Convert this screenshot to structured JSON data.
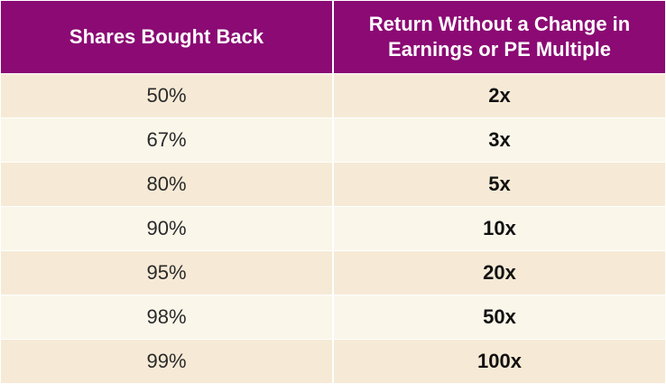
{
  "table": {
    "headers": [
      "Shares Bought Back",
      "Return Without a Change in Earnings or PE Multiple"
    ],
    "rows": [
      [
        "50%",
        "2x"
      ],
      [
        "67%",
        "3x"
      ],
      [
        "80%",
        "5x"
      ],
      [
        "90%",
        "10x"
      ],
      [
        "95%",
        "20x"
      ],
      [
        "98%",
        "50x"
      ],
      [
        "99%",
        "100x"
      ]
    ]
  },
  "colors": {
    "header_bg": "#8b0a74",
    "header_text": "#ffffff",
    "row_odd_bg": "#f6ead6",
    "row_even_bg": "#faf6ea",
    "cell_text": "#2a2a2a"
  }
}
